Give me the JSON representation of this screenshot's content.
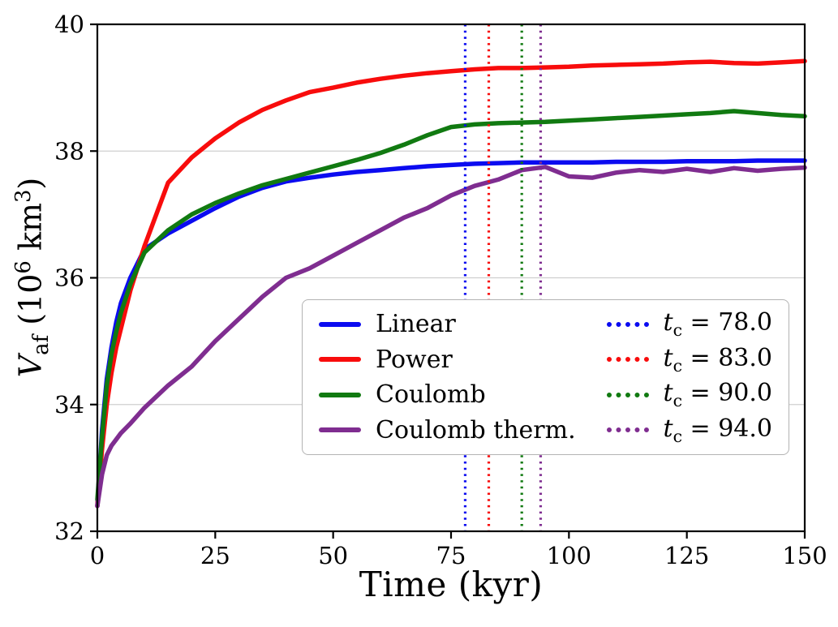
{
  "figure": {
    "background": "#ffffff"
  },
  "chart_data": {
    "type": "line",
    "title": "",
    "xlabel": "Time (kyr)",
    "ylabel": "V_af (10^6 km^3)",
    "xlim": [
      0,
      150
    ],
    "ylim": [
      32,
      40
    ],
    "x_ticks": [
      0,
      25,
      50,
      75,
      100,
      125,
      150
    ],
    "y_ticks": [
      32,
      34,
      36,
      38,
      40
    ],
    "grid": "horizontal",
    "grid_y_values": [
      34,
      36,
      38
    ],
    "legend_position": "lower center-right inside axes",
    "x": [
      0,
      1,
      2,
      3,
      4,
      5,
      7,
      10,
      15,
      20,
      25,
      30,
      35,
      40,
      45,
      50,
      55,
      60,
      65,
      70,
      75,
      80,
      85,
      90,
      95,
      100,
      105,
      110,
      115,
      120,
      125,
      130,
      135,
      140,
      145,
      150
    ],
    "series": [
      {
        "name": "Linear",
        "color": "#0b0bf0",
        "values": [
          32.4,
          33.6,
          34.4,
          34.9,
          35.3,
          35.6,
          36.0,
          36.45,
          36.7,
          36.9,
          37.1,
          37.28,
          37.42,
          37.52,
          37.58,
          37.63,
          37.67,
          37.7,
          37.73,
          37.76,
          37.78,
          37.8,
          37.81,
          37.82,
          37.82,
          37.82,
          37.82,
          37.83,
          37.83,
          37.83,
          37.84,
          37.84,
          37.84,
          37.85,
          37.85,
          37.85
        ]
      },
      {
        "name": "Power",
        "color": "#f80c0c",
        "values": [
          32.4,
          33.3,
          34.0,
          34.5,
          34.9,
          35.2,
          35.8,
          36.5,
          37.5,
          37.9,
          38.2,
          38.45,
          38.65,
          38.8,
          38.93,
          39.0,
          39.08,
          39.14,
          39.19,
          39.23,
          39.26,
          39.29,
          39.31,
          39.31,
          39.32,
          39.33,
          39.35,
          39.36,
          39.37,
          39.38,
          39.4,
          39.41,
          39.39,
          39.38,
          39.4,
          39.42
        ]
      },
      {
        "name": "Coulomb",
        "color": "#117a11",
        "values": [
          32.5,
          33.5,
          34.3,
          34.8,
          35.15,
          35.45,
          35.9,
          36.4,
          36.75,
          37.0,
          37.18,
          37.33,
          37.46,
          37.56,
          37.66,
          37.76,
          37.86,
          37.97,
          38.1,
          38.25,
          38.38,
          38.42,
          38.44,
          38.45,
          38.46,
          38.48,
          38.5,
          38.52,
          38.54,
          38.56,
          38.58,
          38.6,
          38.63,
          38.6,
          38.57,
          38.55
        ]
      },
      {
        "name": "Coulomb therm.",
        "color": "#7f2d90",
        "values": [
          32.4,
          32.9,
          33.2,
          33.35,
          33.45,
          33.55,
          33.7,
          33.95,
          34.3,
          34.6,
          35.0,
          35.35,
          35.7,
          36.0,
          36.15,
          36.35,
          36.55,
          36.75,
          36.95,
          37.1,
          37.3,
          37.45,
          37.55,
          37.7,
          37.75,
          37.6,
          37.58,
          37.66,
          37.7,
          37.67,
          37.72,
          37.67,
          37.73,
          37.69,
          37.72,
          37.74
        ]
      }
    ],
    "vlines": [
      {
        "x": 78.0,
        "color": "#0b0bf0",
        "label": "t_c = 78.0"
      },
      {
        "x": 83.0,
        "color": "#f80c0c",
        "label": "t_c = 83.0"
      },
      {
        "x": 90.0,
        "color": "#117a11",
        "label": "t_c = 90.0"
      },
      {
        "x": 94.0,
        "color": "#7f2d90",
        "label": "t_c = 94.0"
      }
    ]
  },
  "ylabel_parts": {
    "var": "V",
    "sub": "af",
    "open": " (10",
    "exp": "6",
    "mid": " km",
    "exp2": "3",
    "close": ")"
  },
  "legend": {
    "tc_var": "t",
    "tc_sub": "c",
    "tc_values": [
      "= 78.0",
      "= 83.0",
      "= 90.0",
      "= 94.0"
    ]
  },
  "style": {
    "grid_color": "#cfcfcf",
    "spine_color": "#000000",
    "legend_border_color": "#b3b3b3"
  }
}
